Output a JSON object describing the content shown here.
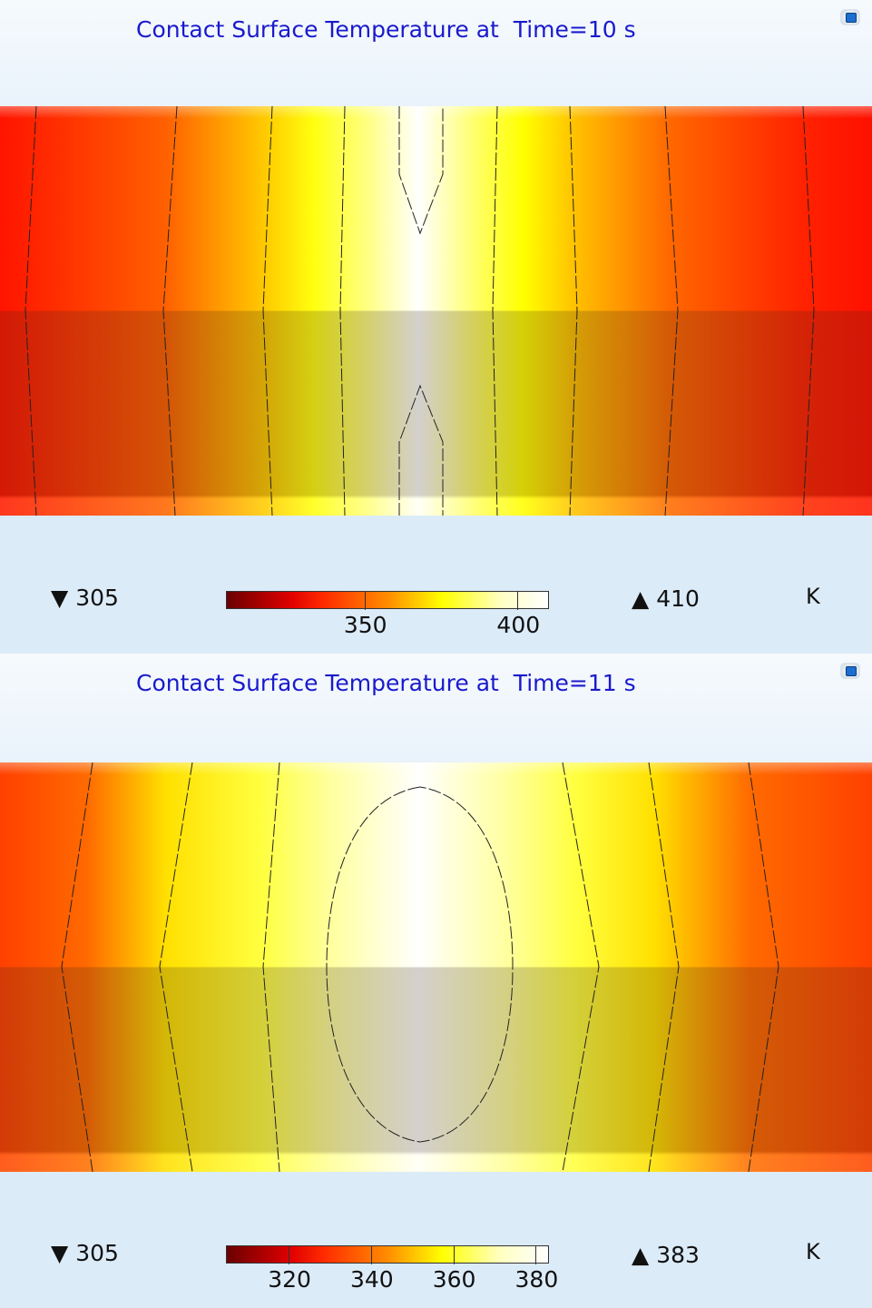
{
  "chart_data": [
    {
      "type": "heatmap",
      "title": "Contact Surface Temperature at  Time=10 s",
      "colorbar": {
        "min": 305,
        "max": 410,
        "min_label": "305",
        "max_label": "410",
        "ticks": [
          350,
          400
        ],
        "tick_labels": [
          "350",
          "400"
        ],
        "unit": "K",
        "colormap": "thermal (dark red - red - yellow - white)"
      },
      "description_of_field": "hottest at horizontal center, cooler toward left and right edges; contour lines drawn"
    },
    {
      "type": "heatmap",
      "title": "Contact Surface Temperature at  Time=11 s",
      "colorbar": {
        "min": 305,
        "max": 383,
        "min_label": "305",
        "max_label": "383",
        "ticks": [
          320,
          340,
          360,
          380
        ],
        "tick_labels": [
          "320",
          "340",
          "360",
          "380"
        ],
        "unit": "K",
        "colormap": "thermal (dark red - red - yellow - white)"
      },
      "description_of_field": "hottest at center (closed elliptical contour), cooler toward edges"
    }
  ],
  "icons": {
    "camera": "camera-icon"
  },
  "symbols": {
    "min": "▼",
    "max": "▲"
  }
}
